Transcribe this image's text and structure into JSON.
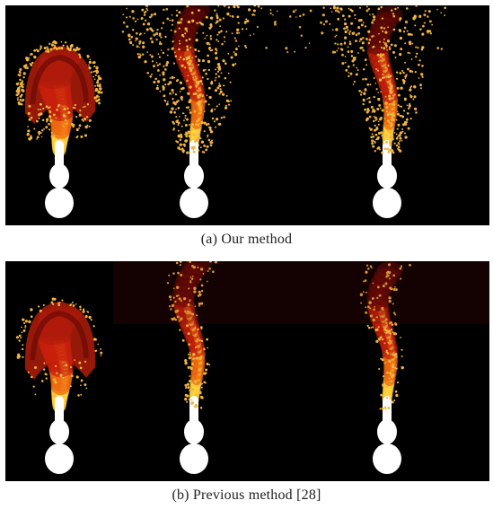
{
  "figure": {
    "panels": [
      {
        "id": "a",
        "caption": "(a) Our method",
        "frames": 3,
        "particles": "dense"
      },
      {
        "id": "b",
        "caption": "(b) Previous method [28]",
        "frames": 3,
        "particles": "sparse"
      }
    ],
    "colors": {
      "background": "#000000",
      "flame_dark": "#6a0a05",
      "flame_red": "#c8200c",
      "flame_orange": "#ee6a10",
      "flame_yellow": "#ffd23a",
      "core_white": "#ffffff",
      "particle": "#f2b640"
    }
  }
}
